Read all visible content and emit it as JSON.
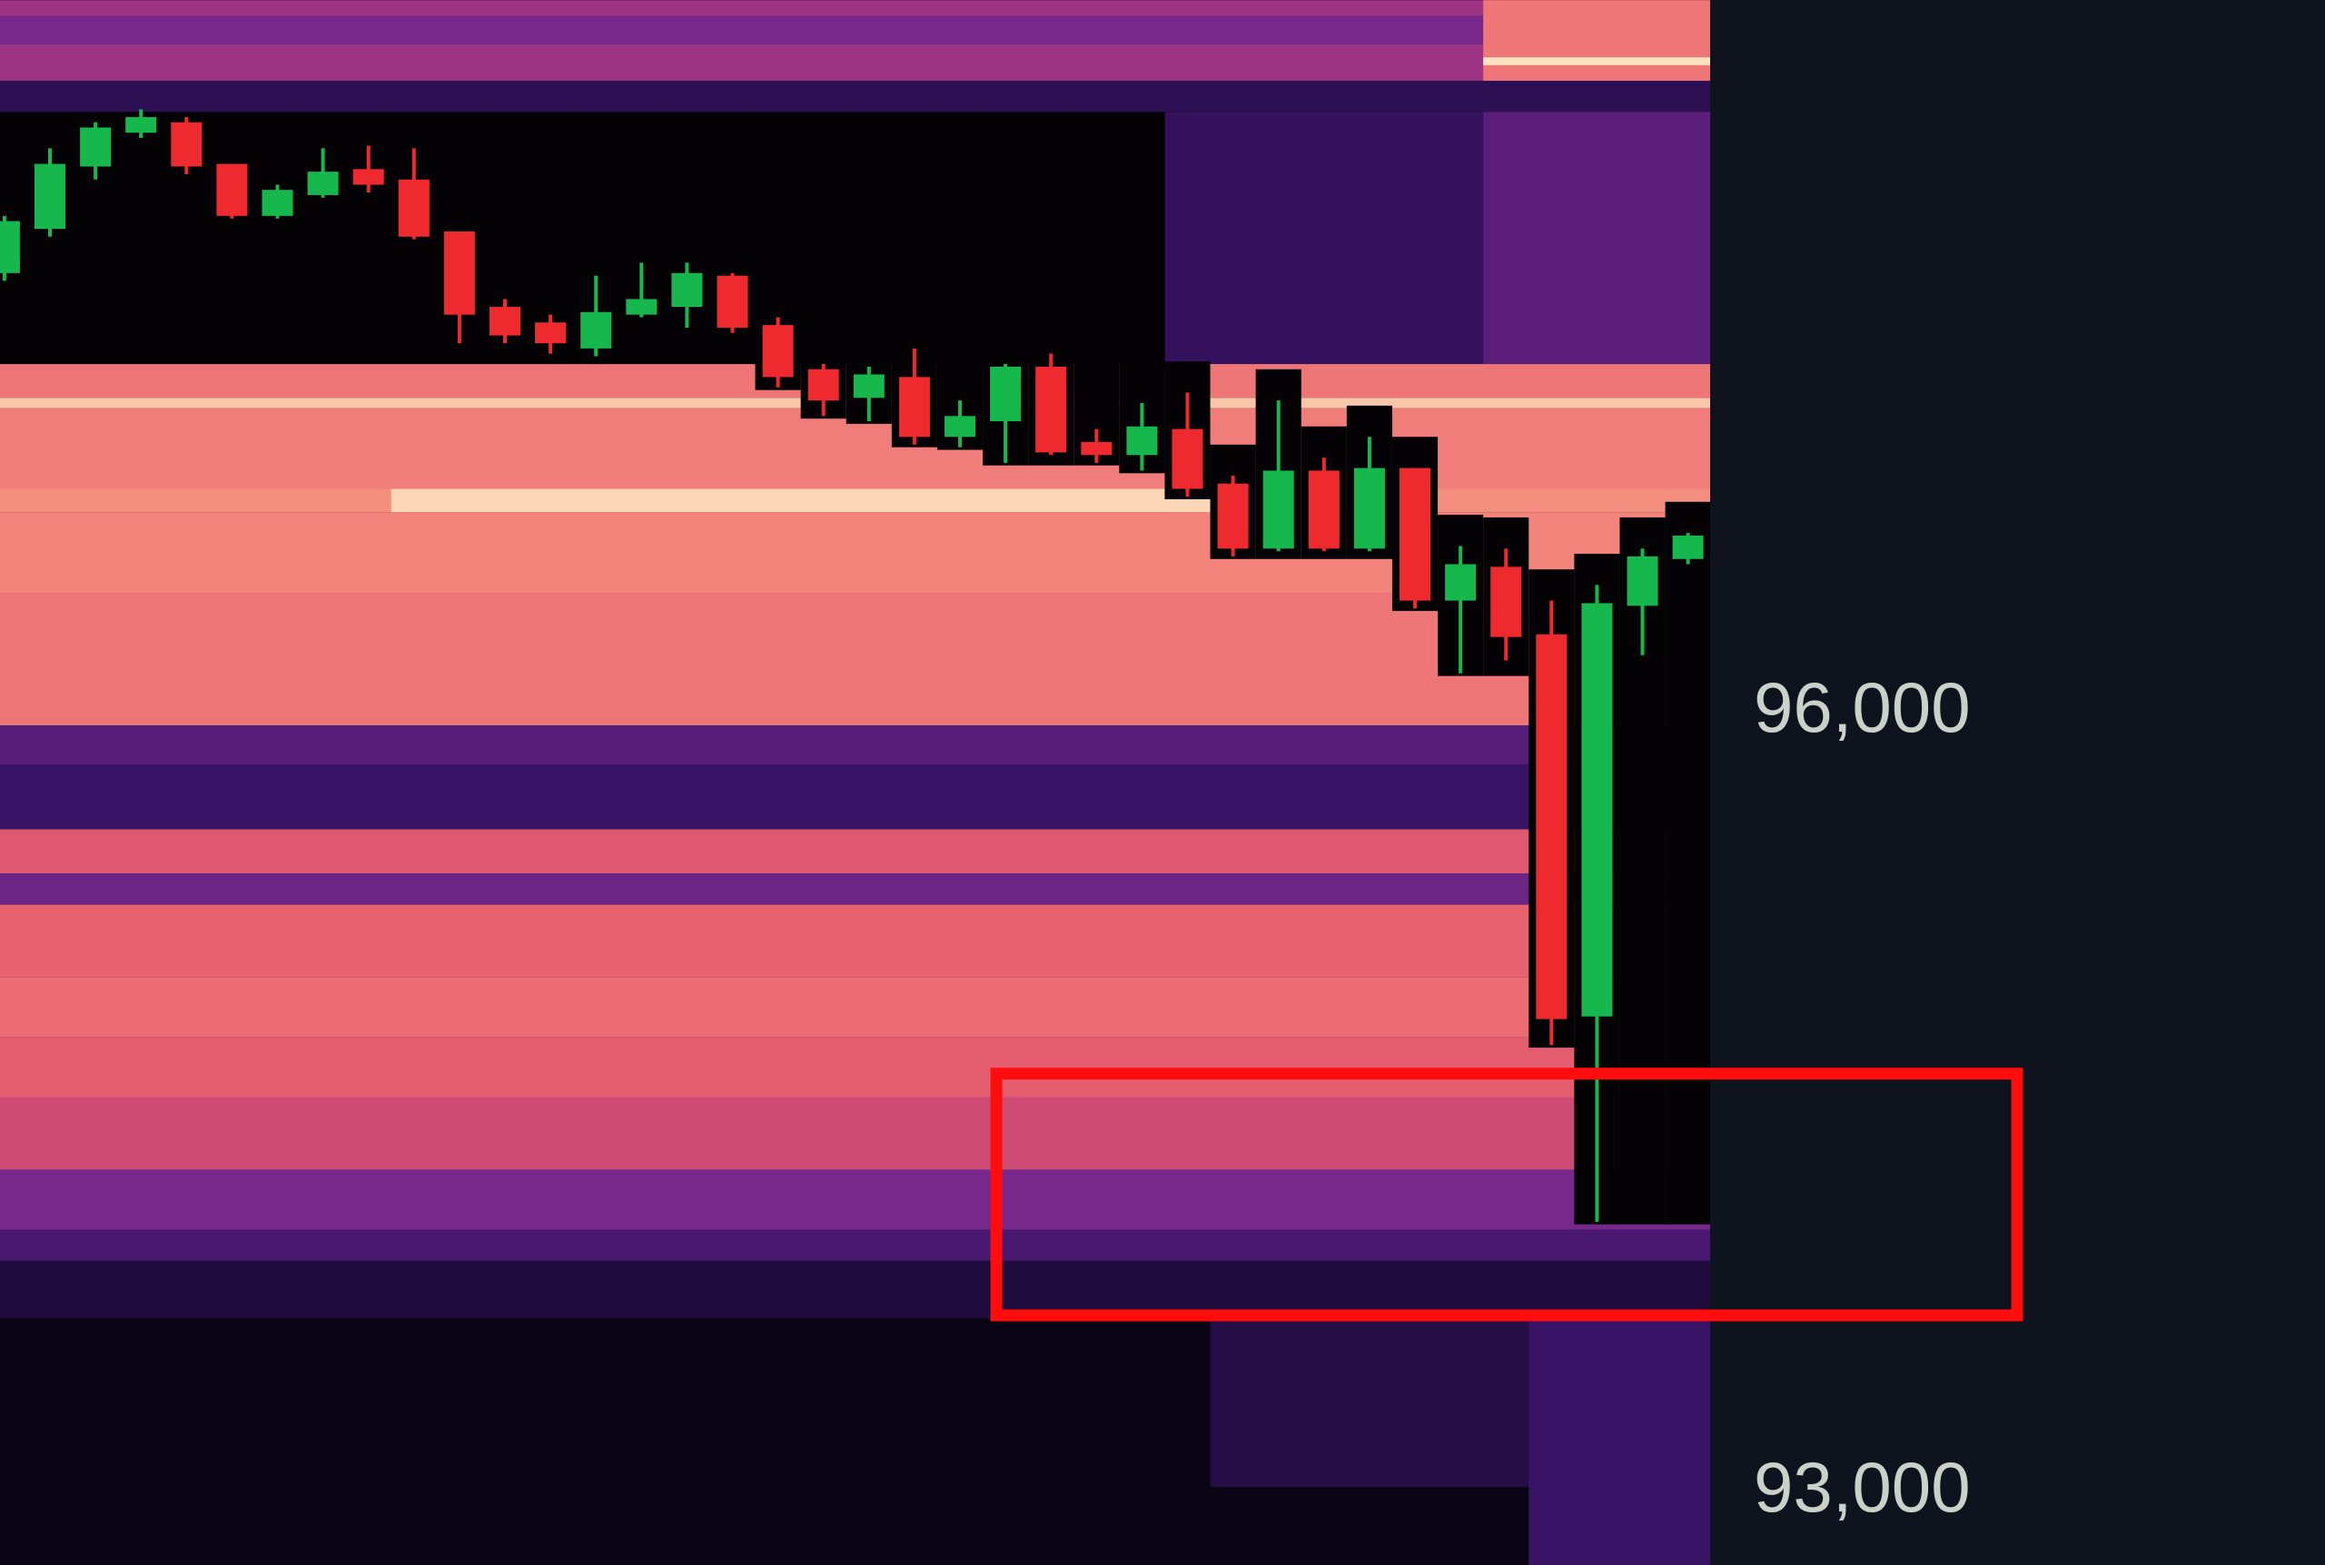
{
  "chart_data": {
    "type": "heatmap",
    "overlay_type": "candlestick",
    "title": "",
    "xlabel": "",
    "ylabel": "",
    "y_ticks": [
      {
        "value": 96000,
        "label": "96,000"
      },
      {
        "value": 93000,
        "label": "93,000"
      }
    ],
    "ylim": [
      92700,
      98720
    ],
    "grid": false,
    "legend": "none",
    "ohlc_order": [
      "open",
      "high",
      "low",
      "close"
    ],
    "candles": [
      [
        97670,
        97890,
        97640,
        97870
      ],
      [
        97840,
        98150,
        97810,
        98090
      ],
      [
        98080,
        98250,
        98030,
        98230
      ],
      [
        98210,
        98300,
        98190,
        98270
      ],
      [
        98250,
        98270,
        98050,
        98080
      ],
      [
        98090,
        98090,
        97880,
        97890
      ],
      [
        97890,
        98010,
        97880,
        97990
      ],
      [
        97970,
        98150,
        97960,
        98060
      ],
      [
        98070,
        98160,
        97980,
        98010
      ],
      [
        98030,
        98150,
        97800,
        97810
      ],
      [
        97830,
        97830,
        97400,
        97510
      ],
      [
        97540,
        97570,
        97400,
        97430
      ],
      [
        97480,
        97510,
        97360,
        97400
      ],
      [
        97380,
        97660,
        97350,
        97520
      ],
      [
        97510,
        97710,
        97500,
        97570
      ],
      [
        97540,
        97710,
        97460,
        97670
      ],
      [
        97660,
        97670,
        97440,
        97460
      ],
      [
        97470,
        97500,
        97230,
        97270
      ],
      [
        97300,
        97320,
        97120,
        97180
      ],
      [
        97190,
        97310,
        97100,
        97280
      ],
      [
        97270,
        97380,
        97010,
        97040
      ],
      [
        97040,
        97180,
        97000,
        97120
      ],
      [
        97100,
        97320,
        96940,
        97310
      ],
      [
        97310,
        97360,
        96970,
        96980
      ],
      [
        97020,
        97070,
        96940,
        96970
      ],
      [
        96970,
        97170,
        96910,
        97080
      ],
      [
        97070,
        97210,
        96810,
        96840
      ],
      [
        96860,
        96890,
        96580,
        96610
      ],
      [
        96610,
        97180,
        96600,
        96910
      ],
      [
        96910,
        96960,
        96600,
        96610
      ],
      [
        96610,
        97040,
        96600,
        96920
      ],
      [
        96920,
        96920,
        96380,
        96410
      ],
      [
        96410,
        96620,
        96130,
        96550
      ],
      [
        96540,
        96610,
        96180,
        96270
      ],
      [
        96280,
        96410,
        94700,
        94800
      ],
      [
        94810,
        96470,
        94020,
        96400
      ],
      [
        96390,
        96610,
        96200,
        96580
      ],
      [
        96570,
        96670,
        96550,
        96660
      ]
    ],
    "heatmap_bands": [
      {
        "from": 98410,
        "to": 98720,
        "level": 0.5
      },
      {
        "from": 98550,
        "to": 98660,
        "level": 0.42
      },
      {
        "from": 98400,
        "to": 98720,
        "level": 0.78,
        "cols": [
          33,
          37
        ]
      },
      {
        "from": 98470,
        "to": 98500,
        "level": 1.0,
        "cols": [
          33,
          37
        ]
      },
      {
        "from": 98290,
        "to": 98410,
        "level": 0.22
      },
      {
        "from": 97320,
        "to": 98290,
        "level": 0.06,
        "cols": [
          0,
          25
        ]
      },
      {
        "from": 97320,
        "to": 98290,
        "level": 0.25,
        "cols": [
          26,
          32
        ]
      },
      {
        "from": 97320,
        "to": 98290,
        "level": 0.36,
        "cols": [
          33,
          37
        ]
      },
      {
        "from": 97190,
        "to": 97320,
        "level": 0.78
      },
      {
        "from": 97150,
        "to": 97190,
        "level": 0.95
      },
      {
        "from": 96840,
        "to": 97150,
        "level": 0.8
      },
      {
        "from": 96750,
        "to": 96840,
        "level": 0.85
      },
      {
        "from": 96750,
        "to": 96840,
        "level": 0.98,
        "cols": [
          9,
          26
        ]
      },
      {
        "from": 96440,
        "to": 96750,
        "level": 0.82
      },
      {
        "from": 95930,
        "to": 96440,
        "level": 0.78
      },
      {
        "from": 95780,
        "to": 95930,
        "level": 0.35
      },
      {
        "from": 95530,
        "to": 95780,
        "level": 0.28
      },
      {
        "from": 95360,
        "to": 95530,
        "level": 0.68
      },
      {
        "from": 95240,
        "to": 95360,
        "level": 0.4
      },
      {
        "from": 94960,
        "to": 95240,
        "level": 0.72
      },
      {
        "from": 94730,
        "to": 94960,
        "level": 0.75
      },
      {
        "from": 94500,
        "to": 94730,
        "level": 0.7
      },
      {
        "from": 94220,
        "to": 94500,
        "level": 0.62
      },
      {
        "from": 93990,
        "to": 94220,
        "level": 0.42
      },
      {
        "from": 93870,
        "to": 93990,
        "level": 0.32
      },
      {
        "from": 93650,
        "to": 93870,
        "level": 0.15
      },
      {
        "from": 92700,
        "to": 93650,
        "level": 0.03
      },
      {
        "from": 93000,
        "to": 93650,
        "level": 0.18,
        "cols": [
          27,
          37
        ]
      },
      {
        "from": 92700,
        "to": 93650,
        "level": 0.28,
        "cols": [
          34,
          37
        ]
      }
    ],
    "highlight_zone": {
      "price_from": 93660,
      "price_to": 94590,
      "from_col": 21.8
    },
    "colors": {
      "up": "#16b84e",
      "down": "#ee2a2f",
      "highlight": "#ff0d0d",
      "axis_background": "#0f131d",
      "plot_background": "#050308",
      "colormap": [
        "#05030a",
        "#1e0c3a",
        "#3a1368",
        "#7a2a8c",
        "#c0407a",
        "#e8606e",
        "#f59080",
        "#fde3c0"
      ]
    }
  }
}
